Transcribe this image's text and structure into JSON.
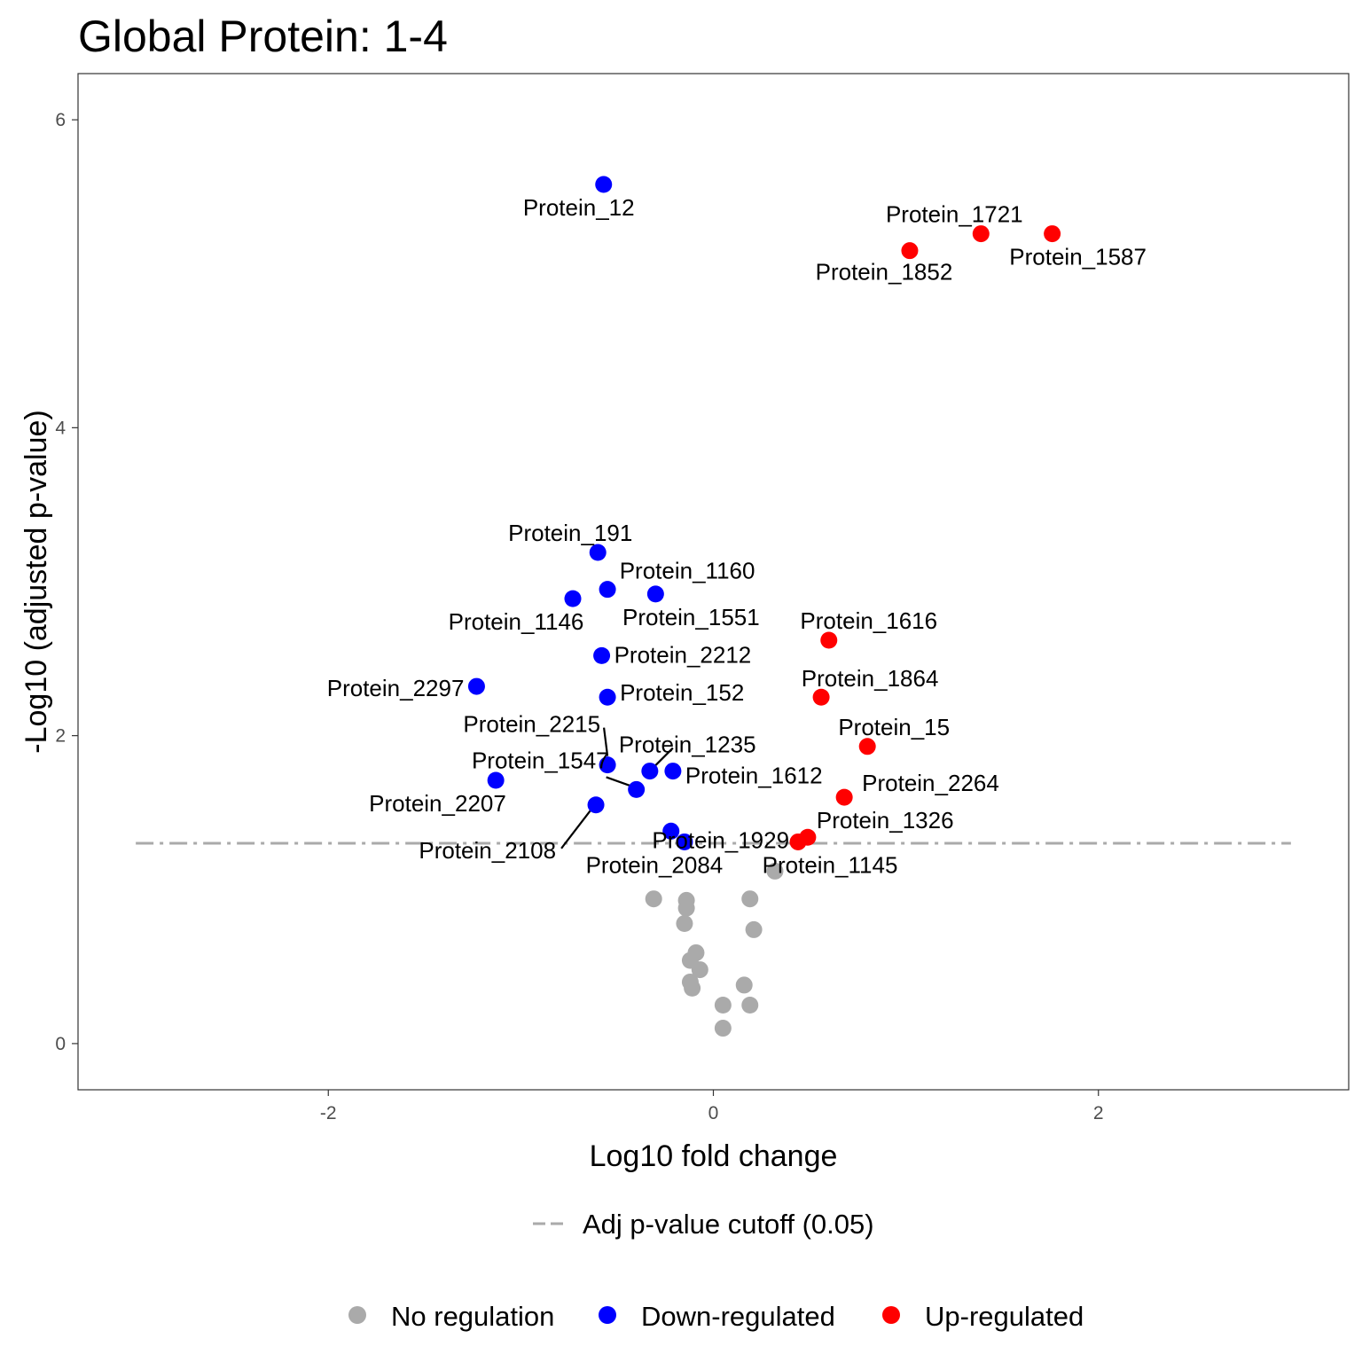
{
  "chart_data": {
    "type": "scatter",
    "title": "Global Protein: 1-4",
    "xlabel": "Log10 fold change",
    "ylabel": "-Log10 (adjusted p-value)",
    "xlim": [
      -3.3,
      3.3
    ],
    "ylim": [
      -0.3,
      6.3
    ],
    "x_ticks": [
      {
        "value": -2,
        "label": "-2"
      },
      {
        "value": 0,
        "label": "0"
      },
      {
        "value": 2,
        "label": "2"
      }
    ],
    "y_ticks": [
      {
        "value": 0,
        "label": "0"
      },
      {
        "value": 2,
        "label": "2"
      },
      {
        "value": 4,
        "label": "4"
      },
      {
        "value": 6,
        "label": "6"
      }
    ],
    "grid": false,
    "cutoff_line": {
      "y": 1.301,
      "x_range": [
        -3,
        3
      ],
      "color": "#AAAAAA",
      "label": "Adj p-value cutoff (0.05)"
    },
    "legend_position": "bottom",
    "legend": [
      {
        "name": "No regulation",
        "color": "#AAAAAA"
      },
      {
        "name": "Down-regulated",
        "color": "#0000FF"
      },
      {
        "name": "Up-regulated",
        "color": "#FF0000"
      }
    ],
    "points": [
      {
        "x": -0.57,
        "y": 5.58,
        "group": "Down-regulated",
        "label": "Protein_12"
      },
      {
        "x": -0.6,
        "y": 3.19,
        "group": "Down-regulated",
        "label": "Protein_191"
      },
      {
        "x": -0.55,
        "y": 2.95,
        "group": "Down-regulated",
        "label": "Protein_1160"
      },
      {
        "x": -0.73,
        "y": 2.89,
        "group": "Down-regulated",
        "label": "Protein_1146"
      },
      {
        "x": -0.3,
        "y": 2.92,
        "group": "Down-regulated",
        "label": "Protein_1551"
      },
      {
        "x": -0.58,
        "y": 2.52,
        "group": "Down-regulated",
        "label": "Protein_2212"
      },
      {
        "x": -1.23,
        "y": 2.32,
        "group": "Down-regulated",
        "label": "Protein_2297"
      },
      {
        "x": -0.55,
        "y": 2.25,
        "group": "Down-regulated",
        "label": "Protein_152"
      },
      {
        "x": -0.55,
        "y": 1.81,
        "group": "Down-regulated",
        "label": "Protein_2215"
      },
      {
        "x": -0.33,
        "y": 1.77,
        "group": "Down-regulated",
        "label": "Protein_1235"
      },
      {
        "x": -0.21,
        "y": 1.77,
        "group": "Down-regulated",
        "label": "Protein_1612"
      },
      {
        "x": -0.4,
        "y": 1.65,
        "group": "Down-regulated",
        "label": "Protein_1547"
      },
      {
        "x": -1.13,
        "y": 1.71,
        "group": "Down-regulated",
        "label": "Protein_2207"
      },
      {
        "x": -0.61,
        "y": 1.55,
        "group": "Down-regulated",
        "label": "Protein_2108"
      },
      {
        "x": -0.22,
        "y": 1.38,
        "group": "Down-regulated",
        "label": "Protein_1929"
      },
      {
        "x": -0.15,
        "y": 1.31,
        "group": "Down-regulated",
        "label": "Protein_2084"
      },
      {
        "x": 1.02,
        "y": 5.15,
        "group": "Up-regulated",
        "label": "Protein_1852"
      },
      {
        "x": 1.39,
        "y": 5.26,
        "group": "Up-regulated",
        "label": "Protein_1721"
      },
      {
        "x": 1.76,
        "y": 5.26,
        "group": "Up-regulated",
        "label": "Protein_1587"
      },
      {
        "x": 0.6,
        "y": 2.62,
        "group": "Up-regulated",
        "label": "Protein_1616"
      },
      {
        "x": 0.56,
        "y": 2.25,
        "group": "Up-regulated",
        "label": "Protein_1864"
      },
      {
        "x": 0.8,
        "y": 1.93,
        "group": "Up-regulated",
        "label": "Protein_15"
      },
      {
        "x": 0.68,
        "y": 1.6,
        "group": "Up-regulated",
        "label": "Protein_2264"
      },
      {
        "x": 0.49,
        "y": 1.34,
        "group": "Up-regulated",
        "label": "Protein_1326"
      },
      {
        "x": 0.44,
        "y": 1.31,
        "group": "Up-regulated",
        "label": "Protein_1145"
      },
      {
        "x": 0.32,
        "y": 1.12,
        "group": "No regulation",
        "label": ""
      },
      {
        "x": -0.31,
        "y": 0.94,
        "group": "No regulation",
        "label": ""
      },
      {
        "x": -0.14,
        "y": 0.93,
        "group": "No regulation",
        "label": ""
      },
      {
        "x": -0.14,
        "y": 0.88,
        "group": "No regulation",
        "label": ""
      },
      {
        "x": 0.19,
        "y": 0.94,
        "group": "No regulation",
        "label": ""
      },
      {
        "x": -0.15,
        "y": 0.78,
        "group": "No regulation",
        "label": ""
      },
      {
        "x": 0.21,
        "y": 0.74,
        "group": "No regulation",
        "label": ""
      },
      {
        "x": -0.09,
        "y": 0.59,
        "group": "No regulation",
        "label": ""
      },
      {
        "x": -0.12,
        "y": 0.54,
        "group": "No regulation",
        "label": ""
      },
      {
        "x": -0.07,
        "y": 0.48,
        "group": "No regulation",
        "label": ""
      },
      {
        "x": -0.12,
        "y": 0.4,
        "group": "No regulation",
        "label": ""
      },
      {
        "x": -0.11,
        "y": 0.36,
        "group": "No regulation",
        "label": ""
      },
      {
        "x": 0.16,
        "y": 0.38,
        "group": "No regulation",
        "label": ""
      },
      {
        "x": 0.05,
        "y": 0.25,
        "group": "No regulation",
        "label": ""
      },
      {
        "x": 0.19,
        "y": 0.25,
        "group": "No regulation",
        "label": ""
      },
      {
        "x": 0.05,
        "y": 0.1,
        "group": "No regulation",
        "label": ""
      }
    ]
  }
}
